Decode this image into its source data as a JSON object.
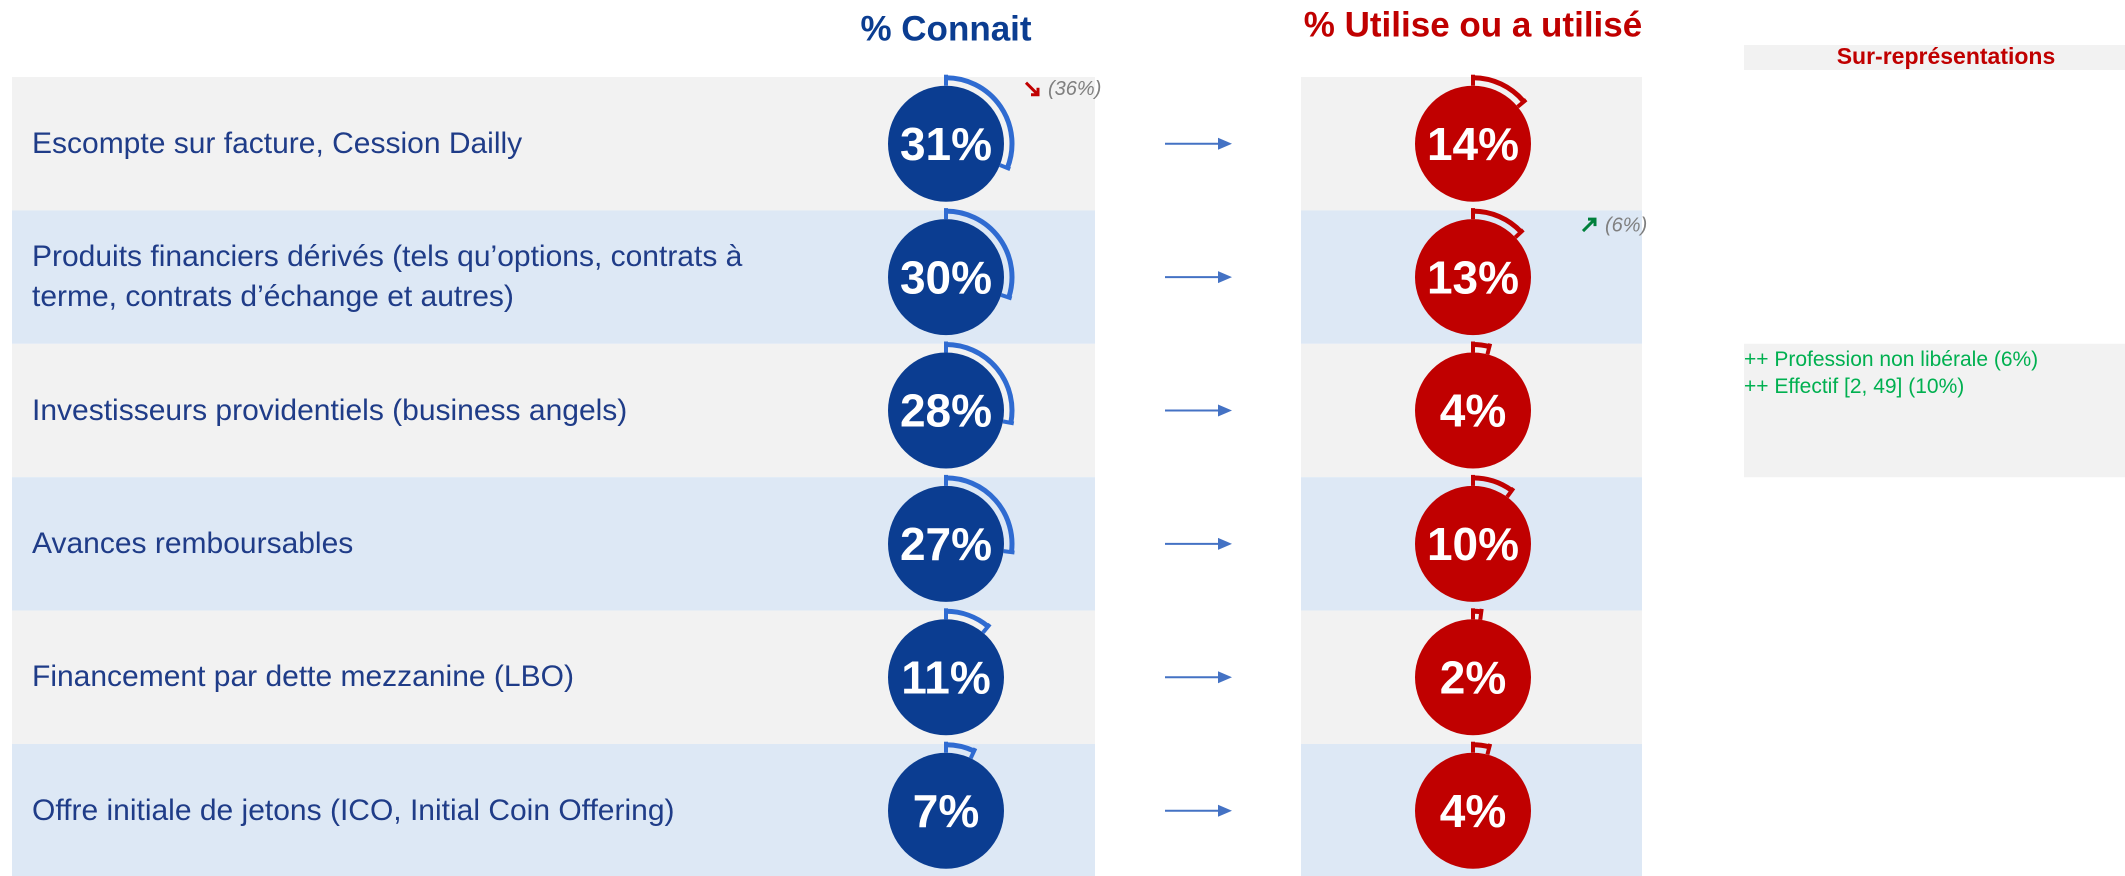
{
  "chart_data": {
    "type": "gauge",
    "categories": [
      "Escompte sur facture, Cession Dailly",
      "Produits financiers dérivés (tels qu’options, contrats à terme, contrats d’échange et autres)",
      "Investisseurs providentiels (business angels)",
      "Avances remboursables",
      "Financement par dette mezzanine (LBO)",
      "Offre initiale de jetons (ICO, Initial Coin Offering)"
    ],
    "ylim": [
      0,
      100
    ],
    "series": [
      {
        "name": "% Connait",
        "color": "#0b3d91",
        "arc_color": "#2f6bd1",
        "values": [
          31,
          30,
          28,
          27,
          11,
          7
        ],
        "value_labels": [
          "31%",
          "30%",
          "28%",
          "27%",
          "11%",
          "7%"
        ],
        "flags": [
          {
            "label": "(36%)",
            "trend": "down"
          },
          null,
          null,
          null,
          null,
          null
        ]
      },
      {
        "name": "% Utilise ou a utilisé",
        "color": "#c00000",
        "arc_color": "#c00000",
        "values": [
          14,
          13,
          4,
          10,
          2,
          4
        ],
        "value_labels": [
          "14%",
          "13%",
          "4%",
          "10%",
          "2%",
          "4%"
        ],
        "flags": [
          null,
          {
            "label": "(6%)",
            "trend": "up"
          },
          null,
          null,
          null,
          null
        ]
      }
    ],
    "side_panel": {
      "title": "Sur-représentations",
      "notes": [
        [],
        [],
        [
          "++ Profession non libérale (6%)",
          "++ Effectif [2, 49] (10%)"
        ],
        [],
        [],
        []
      ]
    }
  }
}
